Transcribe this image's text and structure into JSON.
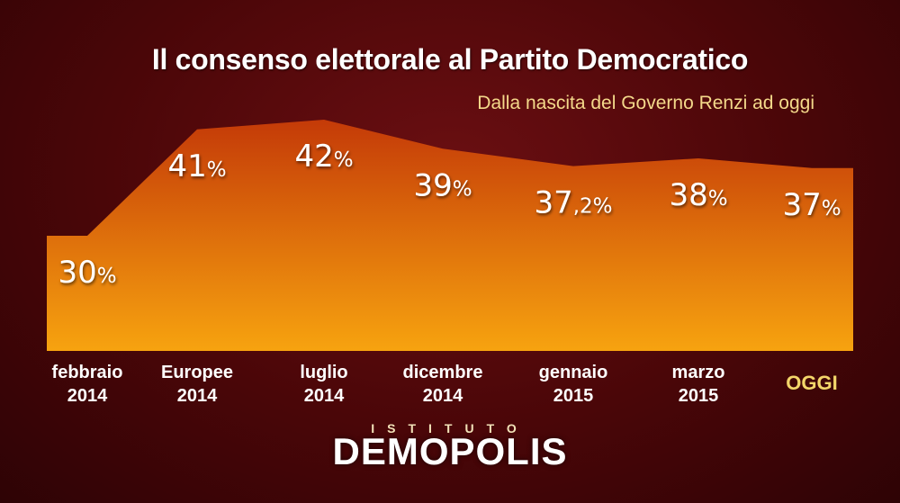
{
  "title": "Il consenso elettorale al Partito Democratico",
  "subtitle": "Dalla nascita del Governo Renzi ad oggi",
  "logo": {
    "small": "ISTITUTO",
    "big": "DEMOPOLIS"
  },
  "colors": {
    "area_top": "#c43a08",
    "area_bottom": "#f7a30f",
    "highlight": "#f3d66a"
  },
  "chart_data": {
    "type": "area",
    "title": "Il consenso elettorale al Partito Democratico",
    "subtitle": "Dalla nascita del Governo Renzi ad oggi",
    "categories": [
      [
        "febbraio",
        "2014"
      ],
      [
        "Europee",
        "2014"
      ],
      [
        "luglio",
        "2014"
      ],
      [
        "dicembre",
        "2014"
      ],
      [
        "gennaio",
        "2015"
      ],
      [
        "marzo",
        "2015"
      ],
      [
        "OGGI"
      ]
    ],
    "values": [
      30,
      41,
      42,
      39,
      37.2,
      38,
      37
    ],
    "value_labels": [
      [
        "30",
        "%"
      ],
      [
        "41",
        "%"
      ],
      [
        "42",
        "%"
      ],
      [
        "39",
        "%"
      ],
      [
        "37",
        ",2%"
      ],
      [
        "38",
        "%"
      ],
      [
        "37",
        "%"
      ]
    ],
    "unit": "%",
    "grid": false,
    "legend": "none"
  }
}
